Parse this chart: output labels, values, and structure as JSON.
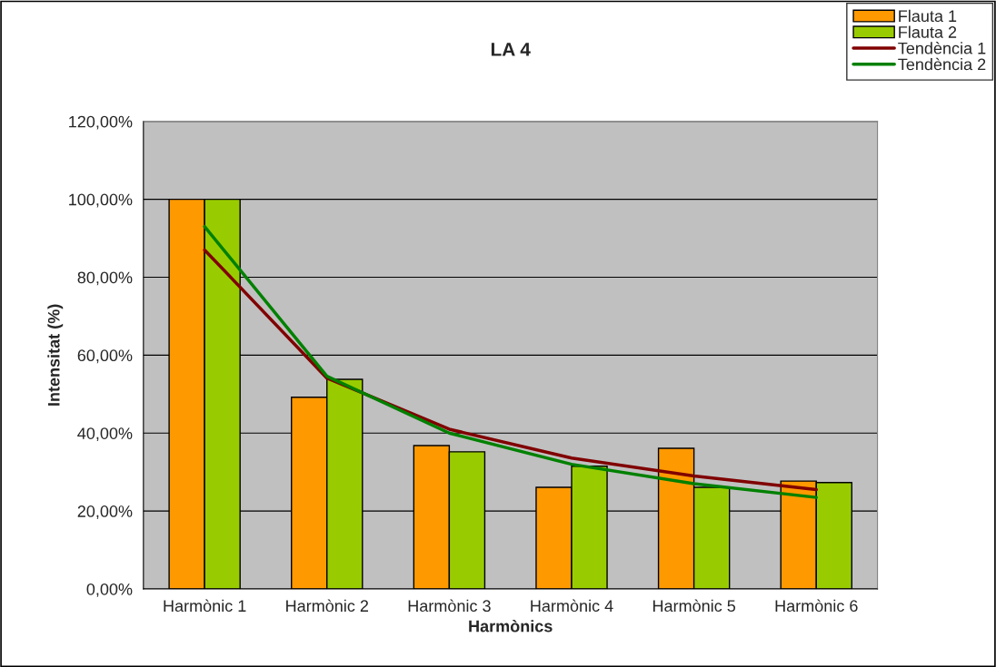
{
  "chart_data": {
    "type": "bar",
    "title": "LA 4",
    "xlabel": "Harmònics",
    "ylabel": "Intensitat (%)",
    "categories": [
      "Harmònic 1",
      "Harmònic 2",
      "Harmònic 3",
      "Harmònic 4",
      "Harmònic 5",
      "Harmònic 6"
    ],
    "series": [
      {
        "name": "Flauta 1",
        "color": "#ff9900",
        "values": [
          100,
          49.2,
          36.8,
          26.1,
          36.1,
          27.7
        ]
      },
      {
        "name": "Flauta 2",
        "color": "#99cc00",
        "values": [
          100,
          53.8,
          35.2,
          31.5,
          26.1,
          27.3
        ]
      },
      {
        "name": "Tendència 1",
        "type": "line",
        "color": "#800000",
        "values": [
          87,
          54.1,
          41,
          33.6,
          29,
          25.5
        ]
      },
      {
        "name": "Tendència 2",
        "type": "line",
        "color": "#008000",
        "values": [
          93,
          54.6,
          40,
          32,
          27,
          23.5
        ]
      }
    ],
    "ylim": [
      0,
      120
    ],
    "yticks": [
      {
        "value": 0,
        "label": "0,00%"
      },
      {
        "value": 20,
        "label": "20,00%"
      },
      {
        "value": 40,
        "label": "40,00%"
      },
      {
        "value": 60,
        "label": "60,00%"
      },
      {
        "value": 80,
        "label": "80,00%"
      },
      {
        "value": 100,
        "label": "100,00%"
      },
      {
        "value": 120,
        "label": "120,00%"
      }
    ],
    "grid": "y",
    "legend": "top right"
  }
}
